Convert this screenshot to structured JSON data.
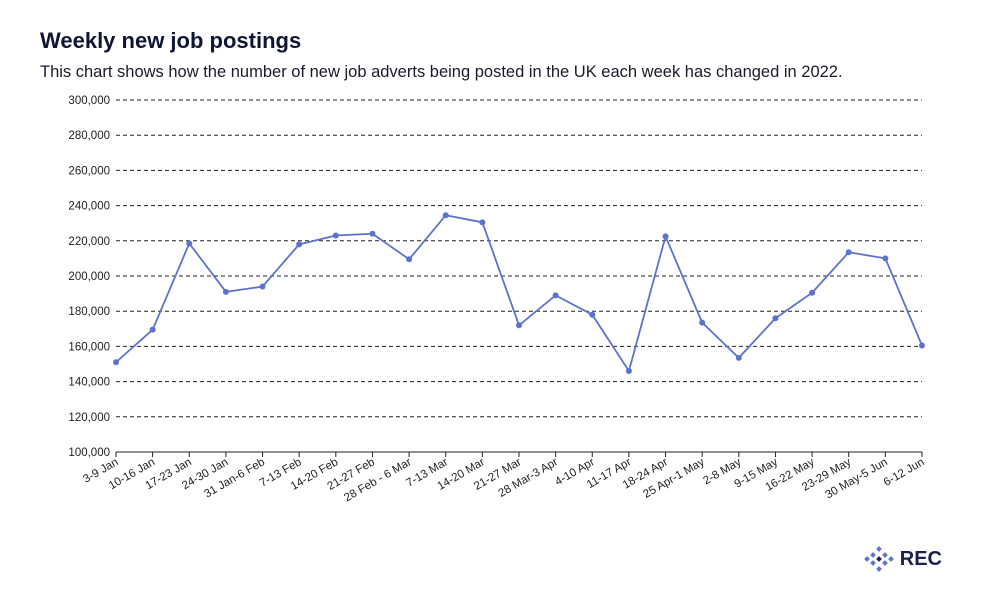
{
  "header": {
    "title": "Weekly new job postings",
    "subtitle": "This chart shows how the number of new job adverts being posted in the UK each week has changed in 2022."
  },
  "logo": {
    "text": "REC",
    "icon": "rec-diamond-logo-icon"
  },
  "colors": {
    "line": "#5b72cf",
    "grid": "#222222",
    "text": "#222222",
    "brand": "#1a1f4d"
  },
  "chart_data": {
    "type": "line",
    "categories": [
      "3-9 Jan",
      "10-16 Jan",
      "17-23 Jan",
      "24-30 Jan",
      "31 Jan-6 Feb",
      "7-13 Feb",
      "14-20 Feb",
      "21-27 Feb",
      "28 Feb - 6 Mar",
      "7-13 Mar",
      "14-20 Mar",
      "21-27 Mar",
      "28 Mar-3 Apr",
      "4-10 Apr",
      "11-17 Apr",
      "18-24 Apr",
      "25 Apr-1 May",
      "2-8 May",
      "9-15 May",
      "16-22 May",
      "23-29 May",
      "30 May-5 Jun",
      "6-12 Jun"
    ],
    "series": [
      {
        "values": [
          151000,
          169500,
          218500,
          191000,
          194000,
          218000,
          223000,
          224000,
          209500,
          234500,
          230500,
          172000,
          189000,
          178000,
          146000,
          222500,
          173500,
          153500,
          176000,
          190500,
          213500,
          210000,
          160500
        ]
      }
    ],
    "ylim": [
      100000,
      300000
    ],
    "yticks": [
      100000,
      120000,
      140000,
      160000,
      180000,
      200000,
      220000,
      240000,
      260000,
      280000,
      300000
    ],
    "ytick_labels": [
      "100,000",
      "120,000",
      "140,000",
      "160,000",
      "180,000",
      "200,000",
      "220,000",
      "240,000",
      "260,000",
      "280,000",
      "300,000"
    ],
    "grid": true,
    "grid_style": "dashed"
  }
}
